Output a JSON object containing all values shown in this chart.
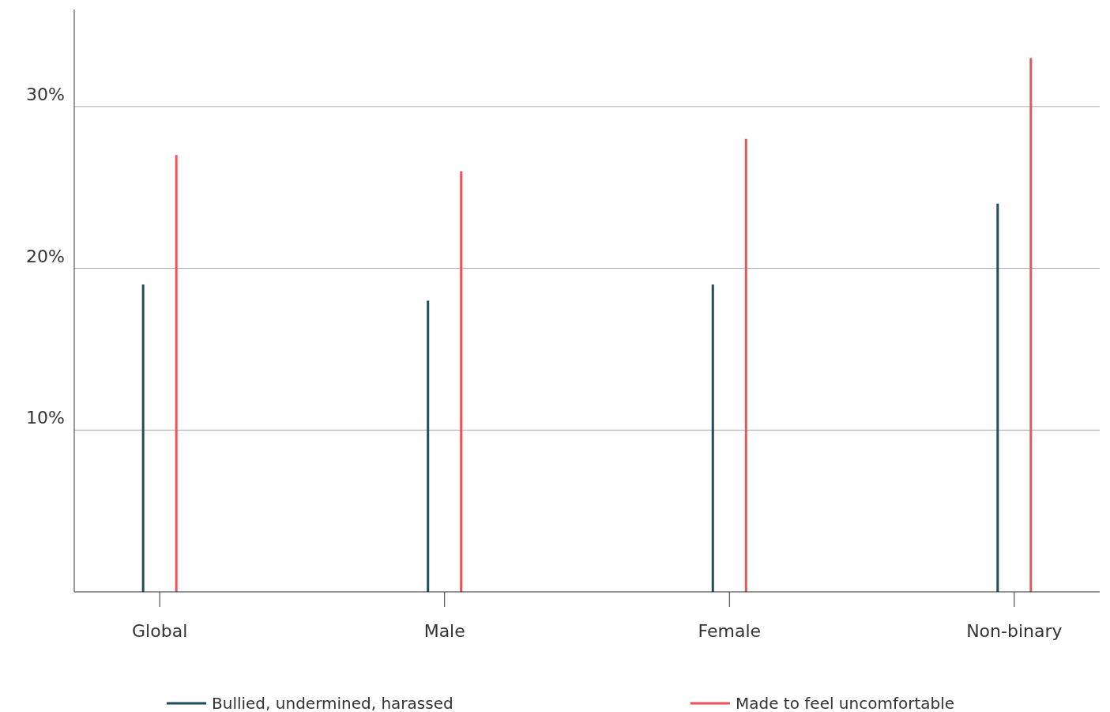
{
  "chart_data": {
    "type": "bar",
    "categories": [
      "Global",
      "Male",
      "Female",
      "Non-binary"
    ],
    "series": [
      {
        "name": "Bullied, undermined, harassed",
        "color": "#1f4e5a",
        "values": [
          19,
          18,
          19,
          24
        ]
      },
      {
        "name": "Made to feel uncomfortable",
        "color": "#e8545a",
        "values": [
          27,
          26,
          28,
          33
        ]
      }
    ],
    "ylim": [
      0,
      36
    ],
    "yticks": [
      {
        "value": 10,
        "label": "10%"
      },
      {
        "value": 20,
        "label": "20%"
      },
      {
        "value": 30,
        "label": "30%"
      }
    ],
    "grid": "y",
    "legend": "bottom"
  }
}
